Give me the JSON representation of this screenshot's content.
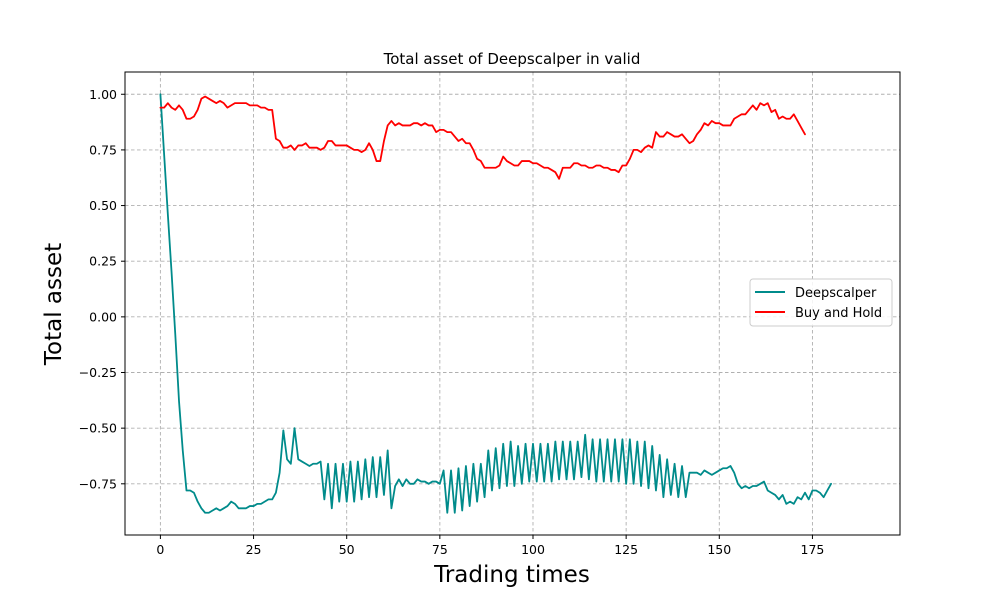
{
  "chart_data": {
    "type": "line",
    "title": "Total asset of Deepscalper in valid",
    "xlabel": "Trading times",
    "ylabel": "Total asset",
    "xlim": [
      -9.5,
      198.5
    ],
    "ylim": [
      -0.98,
      1.1
    ],
    "xticks": [
      0,
      25,
      50,
      75,
      100,
      125,
      150,
      175
    ],
    "yticks": [
      -0.75,
      -0.5,
      -0.25,
      0.0,
      0.25,
      0.5,
      0.75,
      1.0
    ],
    "ytick_labels": [
      "−0.75",
      "−0.50",
      "−0.25",
      "0.00",
      "0.25",
      "0.50",
      "0.75",
      "1.00"
    ],
    "grid": true,
    "legend_position": "center-right",
    "series": [
      {
        "name": "Deepscalper",
        "color": "#008b8b",
        "values": [
          1.0,
          0.73,
          0.46,
          0.2,
          -0.08,
          -0.38,
          -0.6,
          -0.78,
          -0.78,
          -0.79,
          -0.83,
          -0.86,
          -0.88,
          -0.88,
          -0.87,
          -0.86,
          -0.87,
          -0.86,
          -0.85,
          -0.83,
          -0.84,
          -0.86,
          -0.86,
          -0.86,
          -0.85,
          -0.85,
          -0.84,
          -0.84,
          -0.83,
          -0.82,
          -0.82,
          -0.79,
          -0.7,
          -0.51,
          -0.64,
          -0.66,
          -0.5,
          -0.64,
          -0.65,
          -0.66,
          -0.67,
          -0.66,
          -0.66,
          -0.65,
          -0.82,
          -0.66,
          -0.86,
          -0.66,
          -0.83,
          -0.66,
          -0.83,
          -0.65,
          -0.83,
          -0.65,
          -0.82,
          -0.64,
          -0.81,
          -0.63,
          -0.81,
          -0.63,
          -0.8,
          -0.6,
          -0.86,
          -0.76,
          -0.73,
          -0.76,
          -0.73,
          -0.75,
          -0.75,
          -0.73,
          -0.74,
          -0.74,
          -0.75,
          -0.74,
          -0.74,
          -0.75,
          -0.69,
          -0.88,
          -0.69,
          -0.88,
          -0.68,
          -0.87,
          -0.67,
          -0.85,
          -0.66,
          -0.83,
          -0.66,
          -0.81,
          -0.6,
          -0.78,
          -0.59,
          -0.77,
          -0.57,
          -0.76,
          -0.56,
          -0.76,
          -0.58,
          -0.75,
          -0.57,
          -0.74,
          -0.57,
          -0.74,
          -0.57,
          -0.74,
          -0.57,
          -0.74,
          -0.56,
          -0.73,
          -0.56,
          -0.73,
          -0.56,
          -0.73,
          -0.56,
          -0.72,
          -0.53,
          -0.73,
          -0.55,
          -0.74,
          -0.55,
          -0.74,
          -0.55,
          -0.74,
          -0.55,
          -0.74,
          -0.55,
          -0.75,
          -0.55,
          -0.75,
          -0.56,
          -0.76,
          -0.56,
          -0.77,
          -0.58,
          -0.78,
          -0.62,
          -0.81,
          -0.64,
          -0.8,
          -0.66,
          -0.81,
          -0.67,
          -0.81,
          -0.7,
          -0.7,
          -0.7,
          -0.71,
          -0.69,
          -0.7,
          -0.71,
          -0.7,
          -0.69,
          -0.68,
          -0.68,
          -0.67,
          -0.7,
          -0.75,
          -0.77,
          -0.76,
          -0.77,
          -0.76,
          -0.76,
          -0.75,
          -0.74,
          -0.78,
          -0.79,
          -0.8,
          -0.82,
          -0.8,
          -0.84,
          -0.83,
          -0.84,
          -0.81,
          -0.82,
          -0.79,
          -0.82,
          -0.78,
          -0.78,
          -0.79,
          -0.81,
          -0.78,
          -0.75
        ]
      },
      {
        "name": "Buy and Hold",
        "color": "#ff0000",
        "values": [
          0.94,
          0.94,
          0.96,
          0.94,
          0.93,
          0.95,
          0.93,
          0.89,
          0.89,
          0.9,
          0.93,
          0.98,
          0.99,
          0.98,
          0.97,
          0.96,
          0.97,
          0.96,
          0.94,
          0.95,
          0.96,
          0.96,
          0.96,
          0.96,
          0.95,
          0.95,
          0.95,
          0.94,
          0.94,
          0.93,
          0.93,
          0.8,
          0.79,
          0.76,
          0.76,
          0.77,
          0.75,
          0.77,
          0.77,
          0.78,
          0.76,
          0.76,
          0.76,
          0.75,
          0.76,
          0.79,
          0.79,
          0.77,
          0.77,
          0.77,
          0.77,
          0.76,
          0.75,
          0.75,
          0.74,
          0.75,
          0.78,
          0.75,
          0.7,
          0.7,
          0.79,
          0.86,
          0.88,
          0.86,
          0.87,
          0.86,
          0.86,
          0.86,
          0.87,
          0.87,
          0.86,
          0.87,
          0.86,
          0.86,
          0.83,
          0.84,
          0.84,
          0.83,
          0.83,
          0.81,
          0.79,
          0.8,
          0.78,
          0.78,
          0.75,
          0.71,
          0.7,
          0.67,
          0.67,
          0.67,
          0.67,
          0.68,
          0.72,
          0.7,
          0.69,
          0.68,
          0.68,
          0.7,
          0.7,
          0.7,
          0.69,
          0.69,
          0.68,
          0.67,
          0.67,
          0.66,
          0.65,
          0.62,
          0.67,
          0.67,
          0.67,
          0.69,
          0.69,
          0.68,
          0.68,
          0.67,
          0.67,
          0.68,
          0.68,
          0.67,
          0.67,
          0.66,
          0.66,
          0.65,
          0.68,
          0.68,
          0.71,
          0.75,
          0.75,
          0.74,
          0.76,
          0.77,
          0.76,
          0.83,
          0.81,
          0.81,
          0.83,
          0.82,
          0.81,
          0.81,
          0.82,
          0.8,
          0.78,
          0.79,
          0.82,
          0.84,
          0.87,
          0.86,
          0.88,
          0.87,
          0.87,
          0.86,
          0.86,
          0.86,
          0.89,
          0.9,
          0.91,
          0.91,
          0.93,
          0.95,
          0.93,
          0.96,
          0.95,
          0.96,
          0.92,
          0.93,
          0.89,
          0.9,
          0.89,
          0.89,
          0.91,
          0.88,
          0.85,
          0.82
        ]
      }
    ]
  }
}
